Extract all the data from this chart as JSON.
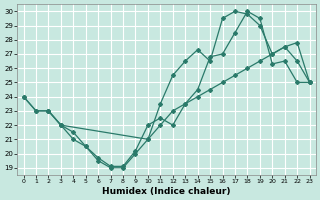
{
  "xlabel": "Humidex (Indice chaleur)",
  "xlim": [
    -0.5,
    23.5
  ],
  "ylim": [
    18.5,
    30.5
  ],
  "yticks": [
    19,
    20,
    21,
    22,
    23,
    24,
    25,
    26,
    27,
    28,
    29,
    30
  ],
  "xticks": [
    0,
    1,
    2,
    3,
    4,
    5,
    6,
    7,
    8,
    9,
    10,
    11,
    12,
    13,
    14,
    15,
    16,
    17,
    18,
    19,
    20,
    21,
    22,
    23
  ],
  "bg_color": "#c8e8e0",
  "grid_color": "#b0d8d0",
  "line_color": "#2a7a6a",
  "line1_x": [
    0,
    1,
    2,
    3,
    4,
    5,
    6,
    7,
    8,
    9,
    10,
    11,
    12,
    13,
    14,
    15,
    16,
    17,
    18,
    19,
    20,
    21,
    22,
    23
  ],
  "line1_y": [
    24.0,
    23.0,
    23.0,
    22.0,
    21.5,
    20.5,
    19.7,
    19.1,
    19.1,
    20.2,
    22.0,
    22.5,
    22.0,
    23.5,
    24.5,
    26.8,
    27.0,
    28.5,
    30.0,
    29.5,
    26.3,
    26.5,
    25.0,
    25.0
  ],
  "line2_x": [
    0,
    1,
    2,
    3,
    4,
    5,
    6,
    7,
    8,
    9,
    10,
    11,
    12,
    13,
    14,
    15,
    16,
    17,
    18,
    19,
    20,
    21,
    22,
    23
  ],
  "line2_y": [
    24.0,
    23.0,
    23.0,
    22.0,
    21.0,
    20.5,
    19.5,
    19.0,
    19.0,
    20.0,
    21.0,
    22.0,
    23.0,
    23.5,
    24.0,
    24.5,
    25.0,
    25.5,
    26.0,
    26.5,
    27.0,
    27.5,
    27.8,
    25.0
  ],
  "line3_x": [
    2,
    3,
    10,
    11,
    12,
    13,
    14,
    15,
    16,
    17,
    18,
    19,
    20,
    21,
    22,
    23
  ],
  "line3_y": [
    23.0,
    22.0,
    21.0,
    23.5,
    25.5,
    26.5,
    27.3,
    26.5,
    29.5,
    30.0,
    29.8,
    29.0,
    27.0,
    27.5,
    26.5,
    25.0
  ]
}
